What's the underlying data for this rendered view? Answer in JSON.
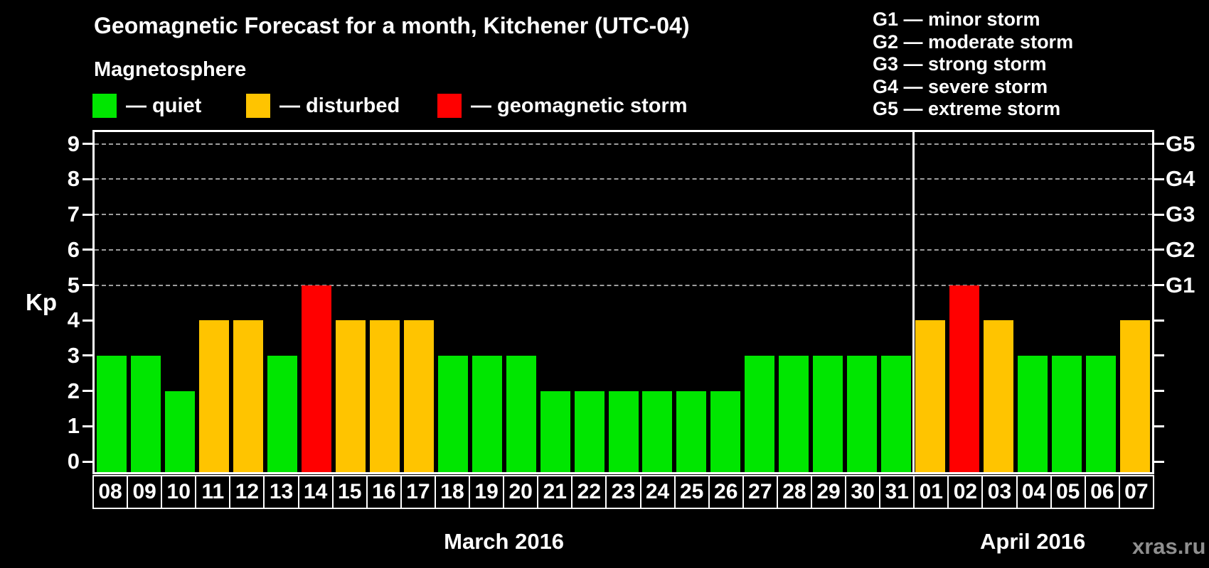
{
  "header": {
    "title": "Geomagnetic Forecast for a month, Kitchener (UTC-04)",
    "subtitle": "Magnetosphere",
    "legend": [
      {
        "status": "quiet",
        "label": "— quiet"
      },
      {
        "status": "disturbed",
        "label": "— disturbed"
      },
      {
        "status": "storm",
        "label": "— geomagnetic storm"
      }
    ],
    "storm_scale_legend": [
      "G1 — minor storm",
      "G2 — moderate storm",
      "G3 — strong storm",
      "G4 — severe storm",
      "G5 — extreme storm"
    ]
  },
  "chart_data": {
    "type": "bar",
    "title": "Geomagnetic Forecast for a month, Kitchener (UTC-04)",
    "xlabel": "",
    "ylabel": "Kp",
    "ylim": [
      0,
      9.3
    ],
    "grid": "dashed horizontal at Kp 5-9",
    "gridlines_at": [
      5,
      6,
      7,
      8,
      9
    ],
    "yticks_left": [
      "0",
      "1",
      "2",
      "3",
      "4",
      "5",
      "6",
      "7",
      "8",
      "9"
    ],
    "yticks_right": [
      {
        "value": 5,
        "label": "G1"
      },
      {
        "value": 6,
        "label": "G2"
      },
      {
        "value": 7,
        "label": "G3"
      },
      {
        "value": 8,
        "label": "G4"
      },
      {
        "value": 9,
        "label": "G5"
      }
    ],
    "status_colors": {
      "quiet": "#00e600",
      "disturbed": "#ffc400",
      "storm": "#ff0000"
    },
    "months": [
      {
        "label": "March 2016",
        "days": 24
      },
      {
        "label": "April 2016",
        "days": 7
      }
    ],
    "series": [
      {
        "day": "08",
        "month": "March 2016",
        "kp": 3,
        "status": "quiet"
      },
      {
        "day": "09",
        "month": "March 2016",
        "kp": 3,
        "status": "quiet"
      },
      {
        "day": "10",
        "month": "March 2016",
        "kp": 2,
        "status": "quiet"
      },
      {
        "day": "11",
        "month": "March 2016",
        "kp": 4,
        "status": "disturbed"
      },
      {
        "day": "12",
        "month": "March 2016",
        "kp": 4,
        "status": "disturbed"
      },
      {
        "day": "13",
        "month": "March 2016",
        "kp": 3,
        "status": "quiet"
      },
      {
        "day": "14",
        "month": "March 2016",
        "kp": 5,
        "status": "storm"
      },
      {
        "day": "15",
        "month": "March 2016",
        "kp": 4,
        "status": "disturbed"
      },
      {
        "day": "16",
        "month": "March 2016",
        "kp": 4,
        "status": "disturbed"
      },
      {
        "day": "17",
        "month": "March 2016",
        "kp": 4,
        "status": "disturbed"
      },
      {
        "day": "18",
        "month": "March 2016",
        "kp": 3,
        "status": "quiet"
      },
      {
        "day": "19",
        "month": "March 2016",
        "kp": 3,
        "status": "quiet"
      },
      {
        "day": "20",
        "month": "March 2016",
        "kp": 3,
        "status": "quiet"
      },
      {
        "day": "21",
        "month": "March 2016",
        "kp": 2,
        "status": "quiet"
      },
      {
        "day": "22",
        "month": "March 2016",
        "kp": 2,
        "status": "quiet"
      },
      {
        "day": "23",
        "month": "March 2016",
        "kp": 2,
        "status": "quiet"
      },
      {
        "day": "24",
        "month": "March 2016",
        "kp": 2,
        "status": "quiet"
      },
      {
        "day": "25",
        "month": "March 2016",
        "kp": 2,
        "status": "quiet"
      },
      {
        "day": "26",
        "month": "March 2016",
        "kp": 2,
        "status": "quiet"
      },
      {
        "day": "27",
        "month": "March 2016",
        "kp": 3,
        "status": "quiet"
      },
      {
        "day": "28",
        "month": "March 2016",
        "kp": 3,
        "status": "quiet"
      },
      {
        "day": "29",
        "month": "March 2016",
        "kp": 3,
        "status": "quiet"
      },
      {
        "day": "30",
        "month": "March 2016",
        "kp": 3,
        "status": "quiet"
      },
      {
        "day": "31",
        "month": "March 2016",
        "kp": 3,
        "status": "quiet"
      },
      {
        "day": "01",
        "month": "April 2016",
        "kp": 4,
        "status": "disturbed"
      },
      {
        "day": "02",
        "month": "April 2016",
        "kp": 5,
        "status": "storm"
      },
      {
        "day": "03",
        "month": "April 2016",
        "kp": 4,
        "status": "disturbed"
      },
      {
        "day": "04",
        "month": "April 2016",
        "kp": 3,
        "status": "quiet"
      },
      {
        "day": "05",
        "month": "April 2016",
        "kp": 3,
        "status": "quiet"
      },
      {
        "day": "06",
        "month": "April 2016",
        "kp": 3,
        "status": "quiet"
      },
      {
        "day": "07",
        "month": "April 2016",
        "kp": 4,
        "status": "disturbed"
      }
    ]
  },
  "watermark": "xras.ru"
}
